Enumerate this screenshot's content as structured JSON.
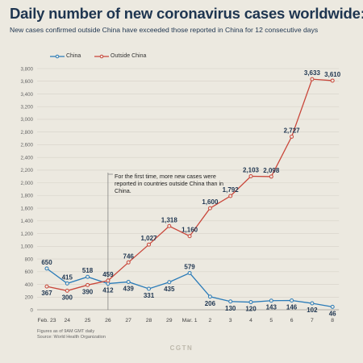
{
  "header": {
    "title": "Daily number of new coronavirus cases worldwide:",
    "subtitle": "New cases confirmed outside China have exceeded those reported in China for 12 consecutive days"
  },
  "footer": {
    "note_line1": "Figures as of 9AM GMT daily",
    "note_line2": "Source: World Health Organization",
    "brand": "CGTN"
  },
  "annotation": {
    "text": "For the first time, more new cases were reported in countries outside China than in China."
  },
  "colors": {
    "china": "#2a7bb8",
    "outside": "#c9463a",
    "label": "#1e3550"
  },
  "chart_data": {
    "type": "line",
    "categories": [
      "Feb. 23",
      "24",
      "25",
      "26",
      "27",
      "28",
      "29",
      "Mar. 1",
      "2",
      "3",
      "4",
      "5",
      "6",
      "7",
      "8"
    ],
    "series": [
      {
        "name": "China",
        "values": [
          650,
          415,
          518,
          412,
          439,
          331,
          435,
          579,
          206,
          130,
          120,
          143,
          146,
          102,
          46
        ]
      },
      {
        "name": "Outside China",
        "values": [
          367,
          300,
          390,
          459,
          746,
          1027,
          1318,
          1160,
          1600,
          1792,
          2103,
          2098,
          2727,
          3633,
          3610
        ]
      }
    ],
    "labels": [
      [
        "650",
        "415",
        "518",
        "412",
        "439",
        "331",
        "435",
        "579",
        "206",
        "130",
        "120",
        "143",
        "146",
        "102",
        "46"
      ],
      [
        "367",
        "300",
        "390",
        "459",
        "746",
        "1,027",
        "1,318",
        "1,160",
        "1,600",
        "1,792",
        "2,103",
        "2,098",
        "2,727",
        "3,633",
        "3,610"
      ]
    ],
    "yticks": [
      "0",
      "200",
      "400",
      "600",
      "800",
      "1,000",
      "1,200",
      "1,400",
      "1,600",
      "1,800",
      "2,000",
      "2,200",
      "2,400",
      "2,600",
      "2,800",
      "3,000",
      "3,200",
      "3,400",
      "3,600",
      "3,800"
    ],
    "ylim": [
      0,
      3800
    ],
    "grid": true,
    "legend": "top-left",
    "annotation_at": "26"
  }
}
